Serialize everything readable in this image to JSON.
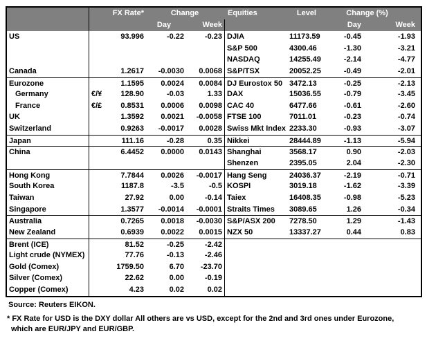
{
  "colors": {
    "header_bg": "#808080",
    "header_text": "#ffffff",
    "border": "#000000",
    "text": "#000000"
  },
  "header": {
    "fx": {
      "rate_label": "FX Rate*",
      "change_label": "Change",
      "day": "Day",
      "week": "Week"
    },
    "equities": {
      "title": "Equities",
      "level_label": "Level",
      "change_label": "Change (%)",
      "day": "Day",
      "week": "Week"
    }
  },
  "rows": [
    {
      "sep": false,
      "fx": {
        "label": "US",
        "sym": "",
        "rate": "93.996",
        "day": "-0.22",
        "week": "-0.23",
        "indent": false
      },
      "eq": {
        "label": "DJIA",
        "level": "11173.59",
        "day": "-0.45",
        "week": "-1.93"
      }
    },
    {
      "sep": false,
      "fx": {
        "label": "",
        "sym": "",
        "rate": "",
        "day": "",
        "week": "",
        "indent": false
      },
      "eq": {
        "label": "S&P 500",
        "level": "4300.46",
        "day": "-1.30",
        "week": "-3.21"
      }
    },
    {
      "sep": false,
      "fx": {
        "label": "",
        "sym": "",
        "rate": "",
        "day": "",
        "week": "",
        "indent": false
      },
      "eq": {
        "label": "NASDAQ",
        "level": "14255.49",
        "day": "-2.14",
        "week": "-4.77"
      }
    },
    {
      "sep": false,
      "fx": {
        "label": "Canada",
        "sym": "",
        "rate": "1.2617",
        "day": "-0.0030",
        "week": "0.0068",
        "indent": false
      },
      "eq": {
        "label": "S&P/TSX",
        "level": "20052.25",
        "day": "-0.49",
        "week": "-2.01"
      }
    },
    {
      "sep": true,
      "fx": {
        "label": "Eurozone",
        "sym": "",
        "rate": "1.1595",
        "day": "0.0024",
        "week": "0.0084",
        "indent": false
      },
      "eq": {
        "label": "DJ Eurostox 50",
        "level": "3472.13",
        "day": "-0.25",
        "week": "-2.13"
      }
    },
    {
      "sep": false,
      "fx": {
        "label": "Germany",
        "sym": "€/¥",
        "rate": "128.90",
        "day": "-0.03",
        "week": "1.33",
        "indent": true
      },
      "eq": {
        "label": "DAX",
        "level": "15036.55",
        "day": "-0.79",
        "week": "-3.45"
      }
    },
    {
      "sep": false,
      "fx": {
        "label": "France",
        "sym": "€/£",
        "rate": "0.8531",
        "day": "0.0006",
        "week": "0.0098",
        "indent": true
      },
      "eq": {
        "label": "CAC 40",
        "level": "6477.66",
        "day": "-0.61",
        "week": "-2.60"
      }
    },
    {
      "sep": false,
      "fx": {
        "label": "UK",
        "sym": "",
        "rate": "1.3592",
        "day": "0.0021",
        "week": "-0.0058",
        "indent": false
      },
      "eq": {
        "label": "FTSE 100",
        "level": "7011.01",
        "day": "-0.23",
        "week": "-0.74"
      }
    },
    {
      "sep": false,
      "fx": {
        "label": "Switzerland",
        "sym": "",
        "rate": "0.9263",
        "day": "-0.0017",
        "week": "0.0028",
        "indent": false
      },
      "eq": {
        "label": "Swiss Mkt Index",
        "level": "2233.30",
        "day": "-0.93",
        "week": "-3.07"
      }
    },
    {
      "sep": true,
      "fx": {
        "label": "Japan",
        "sym": "",
        "rate": "111.16",
        "day": "-0.28",
        "week": "0.35",
        "indent": false
      },
      "eq": {
        "label": "Nikkei",
        "level": "28444.89",
        "day": "-1.13",
        "week": "-5.94"
      }
    },
    {
      "sep": true,
      "fx": {
        "label": "China",
        "sym": "",
        "rate": "6.4452",
        "day": "0.0000",
        "week": "0.0143",
        "indent": false
      },
      "eq": {
        "label": "Shanghai",
        "level": "3568.17",
        "day": "0.90",
        "week": "-2.03"
      }
    },
    {
      "sep": false,
      "fx": {
        "label": "",
        "sym": "",
        "rate": "",
        "day": "",
        "week": "",
        "indent": false
      },
      "eq": {
        "label": "Shenzen",
        "level": "2395.05",
        "day": "2.04",
        "week": "-2.30"
      }
    },
    {
      "sep": true,
      "fx": {
        "label": "Hong Kong",
        "sym": "",
        "rate": "7.7844",
        "day": "0.0026",
        "week": "-0.0017",
        "indent": false
      },
      "eq": {
        "label": "Hang Seng",
        "level": "24036.37",
        "day": "-2.19",
        "week": "-0.71"
      }
    },
    {
      "sep": false,
      "fx": {
        "label": "South Korea",
        "sym": "",
        "rate": "1187.8",
        "day": "-3.5",
        "week": "-0.5",
        "indent": false
      },
      "eq": {
        "label": "KOSPI",
        "level": "3019.18",
        "day": "-1.62",
        "week": "-3.39"
      }
    },
    {
      "sep": false,
      "fx": {
        "label": "Taiwan",
        "sym": "",
        "rate": "27.92",
        "day": "0.00",
        "week": "-0.14",
        "indent": false
      },
      "eq": {
        "label": "Taiex",
        "level": "16408.35",
        "day": "-0.98",
        "week": "-5.23"
      }
    },
    {
      "sep": false,
      "fx": {
        "label": "Singapore",
        "sym": "",
        "rate": "1.3577",
        "day": "-0.0014",
        "week": "-0.0001",
        "indent": false
      },
      "eq": {
        "label": "Straits Times",
        "level": "3089.65",
        "day": "1.26",
        "week": "-0.34"
      }
    },
    {
      "sep": true,
      "fx": {
        "label": "Australia",
        "sym": "",
        "rate": "0.7265",
        "day": "0.0018",
        "week": "-0.0030",
        "indent": false
      },
      "eq": {
        "label": "S&P/ASX  200",
        "level": "7278.50",
        "day": "1.29",
        "week": "-1.43"
      }
    },
    {
      "sep": false,
      "fx": {
        "label": "New Zealand",
        "sym": "",
        "rate": "0.6939",
        "day": "0.0022",
        "week": "0.0015",
        "indent": false
      },
      "eq": {
        "label": "NZX 50",
        "level": "13337.27",
        "day": "0.44",
        "week": "0.83"
      }
    },
    {
      "sep": true,
      "fx": {
        "label": "Brent (ICE)",
        "sym": "",
        "rate": "81.52",
        "day": "-0.25",
        "week": "-2.42",
        "indent": false
      },
      "eq": {
        "label": "",
        "level": "",
        "day": "",
        "week": ""
      }
    },
    {
      "sep": false,
      "fx": {
        "label": "Light crude (NYMEX)",
        "sym": "",
        "rate": "77.76",
        "day": "-0.13",
        "week": "-2.46",
        "indent": false
      },
      "eq": {
        "label": "",
        "level": "",
        "day": "",
        "week": ""
      }
    },
    {
      "sep": false,
      "fx": {
        "label": "Gold (Comex)",
        "sym": "",
        "rate": "1759.50",
        "day": "6.70",
        "week": "-23.70",
        "indent": false
      },
      "eq": {
        "label": "",
        "level": "",
        "day": "",
        "week": ""
      }
    },
    {
      "sep": false,
      "fx": {
        "label": "Silver (Comex)",
        "sym": "",
        "rate": "22.62",
        "day": "0.00",
        "week": "-0.19",
        "indent": false
      },
      "eq": {
        "label": "",
        "level": "",
        "day": "",
        "week": ""
      }
    },
    {
      "sep": false,
      "fx": {
        "label": "Copper (Comex)",
        "sym": "",
        "rate": "4.23",
        "day": "0.02",
        "week": "0.02",
        "indent": false
      },
      "eq": {
        "label": "",
        "level": "",
        "day": "",
        "week": ""
      }
    }
  ],
  "footer": {
    "source": "Source:  Reuters EIKON.",
    "note_line1": "* FX Rate for USD is the DXY dollar  All others are vs USD, except for the 2nd and 3rd ones under Eurozone,",
    "note_line2": "which are EUR/JPY and EUR/GBP."
  }
}
